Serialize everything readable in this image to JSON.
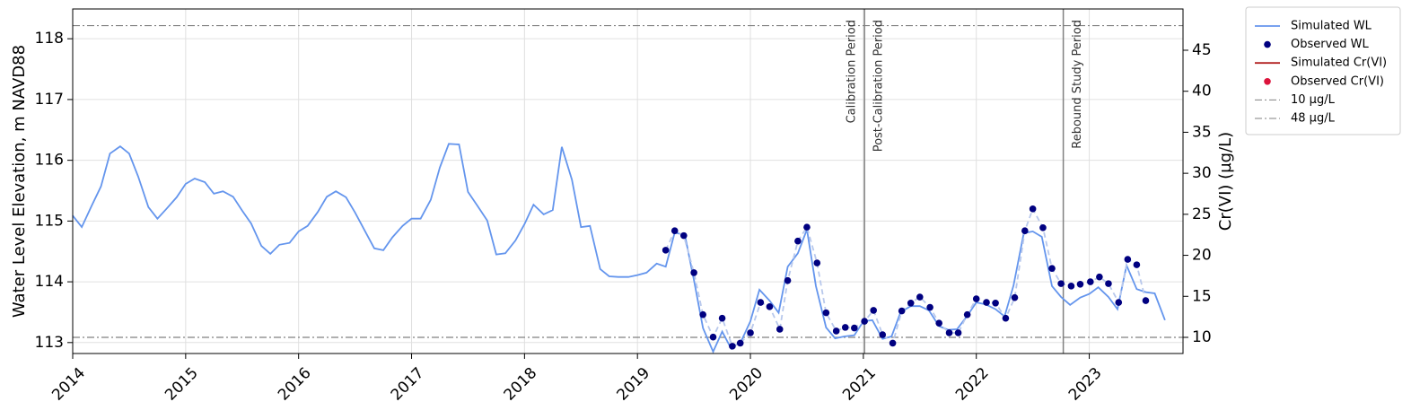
{
  "chart_data": {
    "type": "line",
    "ylabel": "Water Level Elevation, m NAVD88",
    "y2label": "Cr(VI) (µg/L)",
    "xlim": [
      2014,
      2023.83
    ],
    "xticks": [
      2014,
      2015,
      2016,
      2017,
      2018,
      2019,
      2020,
      2021,
      2022,
      2023
    ],
    "ylim": [
      112.82,
      118.49
    ],
    "yticks": [
      113,
      114,
      115,
      116,
      117,
      118
    ],
    "y2lim": [
      8.03,
      50.03
    ],
    "y2ticks": [
      10,
      15,
      20,
      25,
      30,
      35,
      40,
      45
    ],
    "grid": true,
    "legend": "outside upper right",
    "series": [
      {
        "name": "Simulated WL",
        "kind": "line",
        "color": "#6495ed",
        "x": [
          2014.0,
          2014.08,
          2014.17,
          2014.25,
          2014.33,
          2014.42,
          2014.5,
          2014.58,
          2014.67,
          2014.75,
          2014.83,
          2014.92,
          2015.0,
          2015.08,
          2015.17,
          2015.25,
          2015.33,
          2015.42,
          2015.5,
          2015.58,
          2015.67,
          2015.75,
          2015.83,
          2015.92,
          2016.0,
          2016.08,
          2016.17,
          2016.25,
          2016.33,
          2016.42,
          2016.5,
          2016.58,
          2016.67,
          2016.75,
          2016.83,
          2016.92,
          2017.0,
          2017.08,
          2017.17,
          2017.25,
          2017.33,
          2017.42,
          2017.5,
          2017.58,
          2017.67,
          2017.75,
          2017.83,
          2017.92,
          2018.0,
          2018.08,
          2018.17,
          2018.25,
          2018.33,
          2018.42,
          2018.5,
          2018.58,
          2018.67,
          2018.75,
          2018.83,
          2018.92,
          2019.0,
          2019.08,
          2019.17,
          2019.25,
          2019.33,
          2019.42,
          2019.5,
          2019.58,
          2019.67,
          2019.75,
          2019.83,
          2019.92,
          2020.0,
          2020.08,
          2020.17,
          2020.25,
          2020.33,
          2020.42,
          2020.5,
          2020.58,
          2020.67,
          2020.75,
          2020.83,
          2020.92,
          2021.0,
          2021.08,
          2021.17,
          2021.25,
          2021.33,
          2021.42,
          2021.5,
          2021.58,
          2021.67,
          2021.75,
          2021.83,
          2021.92,
          2022.0,
          2022.08,
          2022.17,
          2022.25,
          2022.33,
          2022.42,
          2022.5,
          2022.58,
          2022.67,
          2022.75,
          2022.83,
          2022.92,
          2023.0,
          2023.08,
          2023.17,
          2023.25,
          2023.33,
          2023.42,
          2023.5,
          2023.58,
          2023.67
        ],
        "values": [
          115.09,
          114.9,
          115.26,
          115.57,
          116.11,
          116.23,
          116.11,
          115.73,
          115.23,
          115.04,
          115.2,
          115.39,
          115.61,
          115.7,
          115.64,
          115.45,
          115.49,
          115.4,
          115.17,
          114.96,
          114.59,
          114.46,
          114.61,
          114.64,
          114.83,
          114.92,
          115.15,
          115.4,
          115.49,
          115.39,
          115.14,
          114.86,
          114.55,
          114.52,
          114.73,
          114.92,
          115.04,
          115.04,
          115.35,
          115.88,
          116.27,
          116.26,
          115.48,
          115.26,
          115.01,
          114.45,
          114.47,
          114.68,
          114.95,
          115.27,
          115.11,
          115.18,
          116.22,
          115.68,
          114.9,
          114.92,
          114.21,
          114.09,
          114.08,
          114.08,
          114.11,
          114.15,
          114.3,
          114.25,
          114.81,
          114.77,
          114.03,
          113.24,
          112.85,
          113.18,
          112.9,
          113.03,
          113.35,
          113.87,
          113.69,
          113.49,
          114.25,
          114.47,
          114.86,
          113.93,
          113.25,
          113.07,
          113.1,
          113.12,
          113.35,
          113.37,
          113.06,
          113.1,
          113.5,
          113.6,
          113.6,
          113.53,
          113.27,
          113.21,
          113.22,
          113.44,
          113.66,
          113.63,
          113.55,
          113.43,
          113.94,
          114.8,
          114.83,
          114.74,
          113.93,
          113.75,
          113.62,
          113.74,
          113.8,
          113.91,
          113.75,
          113.55,
          114.27,
          113.88,
          113.83,
          113.81,
          113.37
        ]
      },
      {
        "name": "Observed WL",
        "kind": "scatter",
        "color": "#000080",
        "connector": "dashed",
        "x": [
          2019.25,
          2019.33,
          2019.41,
          2019.5,
          2019.58,
          2019.67,
          2019.75,
          2019.84,
          2019.91,
          2020.0,
          2020.09,
          2020.17,
          2020.26,
          2020.33,
          2020.42,
          2020.5,
          2020.59,
          2020.67,
          2020.76,
          2020.84,
          2020.92,
          2021.01,
          2021.09,
          2021.17,
          2021.26,
          2021.34,
          2021.42,
          2021.5,
          2021.59,
          2021.67,
          2021.76,
          2021.84,
          2021.92,
          2022.0,
          2022.09,
          2022.17,
          2022.26,
          2022.34,
          2022.43,
          2022.5,
          2022.59,
          2022.67,
          2022.75,
          2022.84,
          2022.92,
          2023.01,
          2023.09,
          2023.17,
          2023.26,
          2023.34,
          2023.42,
          2023.5
        ],
        "values": [
          114.52,
          114.84,
          114.76,
          114.15,
          113.46,
          113.09,
          113.4,
          112.94,
          112.99,
          113.16,
          113.66,
          113.59,
          113.22,
          114.02,
          114.67,
          114.9,
          114.31,
          113.49,
          113.19,
          113.25,
          113.24,
          113.35,
          113.53,
          113.13,
          112.99,
          113.52,
          113.65,
          113.75,
          113.58,
          113.32,
          113.16,
          113.16,
          113.46,
          113.72,
          113.66,
          113.65,
          113.4,
          113.74,
          114.84,
          115.2,
          114.89,
          114.22,
          113.97,
          113.93,
          113.96,
          114.0,
          114.08,
          113.97,
          113.66,
          114.37,
          114.28,
          113.69
        ]
      },
      {
        "name": "Simulated Cr(VI)",
        "kind": "line",
        "color": "#b22222",
        "axis": "y2",
        "x": [],
        "values": []
      },
      {
        "name": "Observed Cr(VI)",
        "kind": "scatter",
        "color": "#dc143c",
        "axis": "y2",
        "x": [],
        "values": []
      }
    ],
    "reference_lines": [
      {
        "name": "10 µg/L",
        "value": 10,
        "axis": "y2",
        "color": "#808080"
      },
      {
        "name": "48 µg/L",
        "value": 48,
        "axis": "y2",
        "color": "#808080"
      }
    ],
    "vlines": [
      {
        "x": 2021.01,
        "left_label": "Calibration Period",
        "right_label": "Post-Calibration Period"
      },
      {
        "x": 2022.77,
        "right_label": "Rebound Study Period"
      }
    ]
  }
}
